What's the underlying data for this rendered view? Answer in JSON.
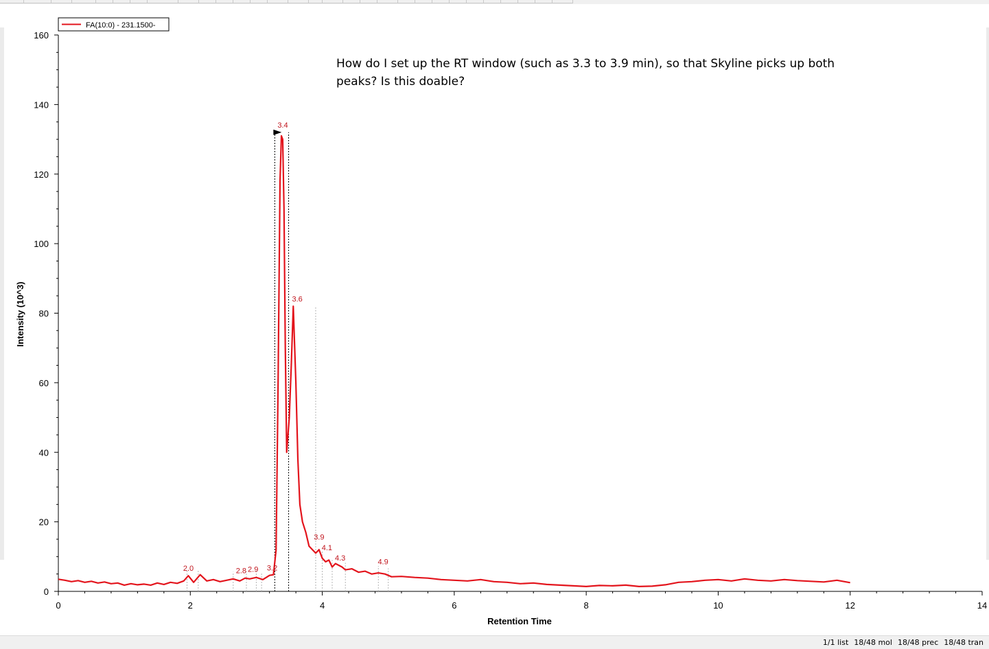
{
  "note": "How do I set up the RT window (such as 3.3 to 3.9 min), so that Skyline picks up both peaks? Is this doable?",
  "status": [
    "1/1 list",
    "18/48 mol",
    "18/48 prec",
    "18/48 tran"
  ],
  "chart_data": {
    "type": "line",
    "xlabel": "Retention Time",
    "ylabel": "Intensity (10^3)",
    "xlim": [
      0,
      14
    ],
    "ylim": [
      0,
      160
    ],
    "xticks": [
      0,
      2,
      4,
      6,
      8,
      10,
      12,
      14
    ],
    "yticks": [
      0,
      20,
      40,
      60,
      80,
      100,
      120,
      140,
      160
    ],
    "grid": false,
    "legend_position": "top-left",
    "series": [
      {
        "name": "FA(10:0) - 231.1500-",
        "color": "#e3141c",
        "x": [
          0,
          0.1,
          0.2,
          0.3,
          0.4,
          0.5,
          0.6,
          0.7,
          0.8,
          0.9,
          1.0,
          1.1,
          1.2,
          1.3,
          1.4,
          1.5,
          1.6,
          1.7,
          1.8,
          1.9,
          1.97,
          2.05,
          2.15,
          2.25,
          2.35,
          2.45,
          2.55,
          2.65,
          2.75,
          2.83,
          2.9,
          3.0,
          3.1,
          3.2,
          3.26,
          3.3,
          3.33,
          3.36,
          3.38,
          3.4,
          3.42,
          3.44,
          3.46,
          3.5,
          3.53,
          3.56,
          3.6,
          3.63,
          3.66,
          3.7,
          3.75,
          3.8,
          3.85,
          3.9,
          3.95,
          4.0,
          4.05,
          4.1,
          4.15,
          4.2,
          4.25,
          4.3,
          4.35,
          4.45,
          4.55,
          4.65,
          4.75,
          4.85,
          4.95,
          5.05,
          5.2,
          5.4,
          5.6,
          5.8,
          6.0,
          6.2,
          6.4,
          6.6,
          6.8,
          7.0,
          7.2,
          7.4,
          7.6,
          7.8,
          8.0,
          8.2,
          8.4,
          8.6,
          8.8,
          9.0,
          9.2,
          9.4,
          9.6,
          9.8,
          10.0,
          10.2,
          10.4,
          10.6,
          10.8,
          11.0,
          11.2,
          11.4,
          11.6,
          11.8,
          12.0
        ],
        "y": [
          3.5,
          3.2,
          2.8,
          3.1,
          2.6,
          2.9,
          2.4,
          2.7,
          2.2,
          2.4,
          1.8,
          2.2,
          1.9,
          2.1,
          1.8,
          2.4,
          2.0,
          2.6,
          2.3,
          3.0,
          4.5,
          2.6,
          4.8,
          3.0,
          3.4,
          2.8,
          3.2,
          3.6,
          3.0,
          3.8,
          3.6,
          4.0,
          3.4,
          4.6,
          4.8,
          12,
          60,
          118,
          131,
          130,
          110,
          70,
          40,
          50,
          65,
          82,
          60,
          38,
          25,
          20,
          17,
          13,
          12,
          11,
          12,
          9.5,
          8.5,
          9.0,
          7.0,
          8.0,
          7.5,
          7.0,
          6.2,
          6.5,
          5.5,
          5.8,
          5.0,
          5.3,
          5.0,
          4.2,
          4.3,
          4.0,
          3.8,
          3.4,
          3.2,
          3.0,
          3.4,
          2.8,
          2.6,
          2.2,
          2.4,
          2.0,
          1.8,
          1.6,
          1.4,
          1.7,
          1.6,
          1.8,
          1.4,
          1.5,
          1.9,
          2.6,
          2.8,
          3.2,
          3.4,
          3.0,
          3.6,
          3.2,
          3.0,
          3.4,
          3.1,
          2.9,
          2.7,
          3.2,
          2.5
        ]
      }
    ],
    "peak_labels": [
      {
        "x": 1.95,
        "y": 4.5,
        "label": "2.0"
      },
      {
        "x": 2.75,
        "y": 3.8,
        "label": "2.8"
      },
      {
        "x": 2.93,
        "y": 4.2,
        "label": "2.9"
      },
      {
        "x": 3.22,
        "y": 4.6,
        "label": "3.2"
      },
      {
        "x": 3.38,
        "y": 132,
        "label": "3.4"
      },
      {
        "x": 3.6,
        "y": 82,
        "label": "3.6"
      },
      {
        "x": 3.93,
        "y": 13.5,
        "label": "3.9"
      },
      {
        "x": 4.05,
        "y": 10.5,
        "label": "4.1"
      },
      {
        "x": 4.25,
        "y": 7.5,
        "label": "4.3"
      },
      {
        "x": 4.9,
        "y": 6.4,
        "label": "4.9"
      }
    ],
    "peak_markers": [
      1.95,
      2.12,
      2.65,
      2.85,
      3.0,
      3.08,
      3.9,
      4.0,
      4.15,
      4.35,
      4.85,
      5.0
    ],
    "integration_bounds": [
      3.28,
      3.49
    ]
  }
}
